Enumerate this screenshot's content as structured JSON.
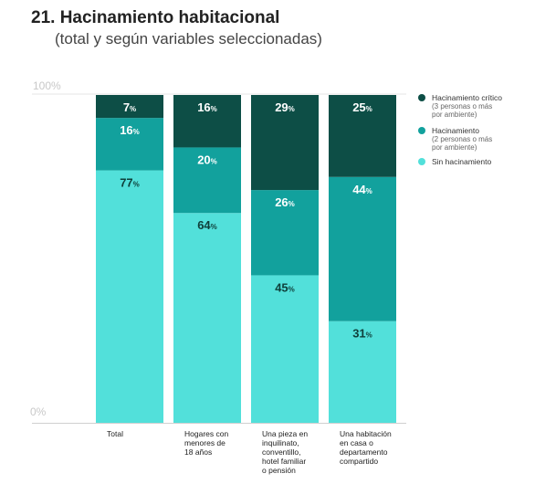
{
  "header": {
    "title": "21. Hacinamiento habitacional",
    "subtitle": "(total y según variables seleccionadas)"
  },
  "axis": {
    "top_label": "100%",
    "bottom_label": "0%"
  },
  "legend": {
    "items": [
      {
        "label": "Hacinamiento crítico",
        "note_lines": [
          "(3 personas o más",
          "por ambiente)"
        ],
        "color": "#0d4e46"
      },
      {
        "label": "Hacinamiento",
        "note_lines": [
          "(2 personas o más",
          "por ambiente)"
        ],
        "color": "#12a19d"
      },
      {
        "label": "Sin hacinamiento",
        "note_lines": [],
        "color": "#52e0da"
      }
    ]
  },
  "chart_data": {
    "type": "bar",
    "stacked": true,
    "percent": true,
    "title": "21. Hacinamiento habitacional",
    "subtitle": "(total y según variables seleccionadas)",
    "ylim": [
      0,
      100
    ],
    "ytick_labels": [
      "0%",
      "100%"
    ],
    "legend_position": "top-right",
    "grid": false,
    "categories": [
      "Total",
      "Hogares con menores de 18 años",
      "Una pieza en inquilinato, conventillo, hotel familiar o pensión",
      "Una habitación en casa o departamento compartido"
    ],
    "category_lines": [
      [
        "Total"
      ],
      [
        "Hogares con",
        "menores de",
        "18 años"
      ],
      [
        "Una pieza en",
        "inquilinato,",
        "conventillo,",
        "hotel familiar",
        "o pensión"
      ],
      [
        "Una habitación",
        "en casa o",
        "departamento",
        "compartido"
      ]
    ],
    "series": [
      {
        "name": "Sin hacinamiento",
        "color": "#52e0da",
        "values": [
          77,
          64,
          45,
          31
        ]
      },
      {
        "name": "Hacinamiento",
        "color": "#12a19d",
        "values": [
          16,
          20,
          26,
          44
        ]
      },
      {
        "name": "Hacinamiento crítico",
        "color": "#0d4e46",
        "values": [
          7,
          16,
          29,
          25
        ]
      }
    ]
  }
}
